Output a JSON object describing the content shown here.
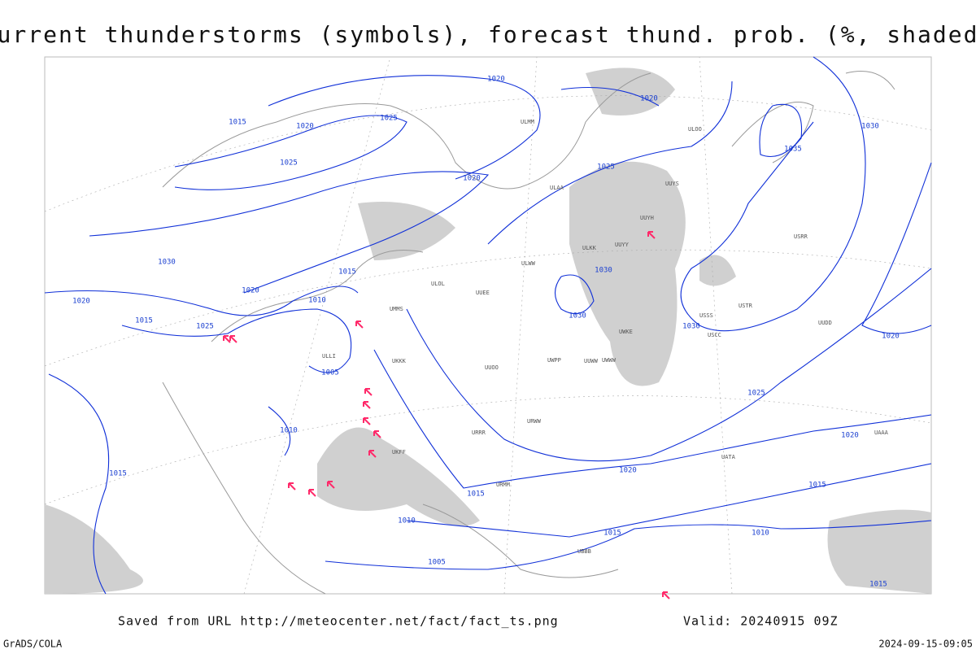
{
  "title": "Current thunderstorms (symbols), forecast thund. prob. (%, shaded)",
  "footer": {
    "source": "Saved from URL http://meteocenter.net/fact/fact_ts.png",
    "valid": "Valid: 20240915 09Z",
    "credit": "GrADS/COLA",
    "timestamp": "2024-09-15-09:05"
  },
  "isobar_labels": [
    "1020",
    "1015",
    "1020",
    "1025",
    "1025",
    "1020",
    "1025",
    "1020",
    "1030",
    "1035",
    "1030",
    "1020",
    "1015",
    "1010",
    "1020",
    "1015",
    "1025",
    "1005",
    "1010",
    "1015",
    "1030",
    "1030",
    "1030",
    "1025",
    "1020",
    "1020",
    "1015",
    "1015",
    "1010",
    "1015",
    "1010",
    "1005",
    "1020",
    "1015"
  ],
  "stations": [
    "ULMM",
    "ULOO",
    "UUYS",
    "ULAA",
    "UUYH",
    "ULKK",
    "UUYY",
    "ULWW",
    "UUEE",
    "UMMS",
    "ULOL",
    "UUWW",
    "ULLI",
    "UKKK",
    "UUOO",
    "UWPP",
    "UWKE",
    "UWWW",
    "USSS",
    "USCC",
    "USTR",
    "UUDD",
    "USRR",
    "UATA",
    "UAAA",
    "URWW",
    "URRR",
    "URMM",
    "UKFF",
    "UBBB"
  ]
}
